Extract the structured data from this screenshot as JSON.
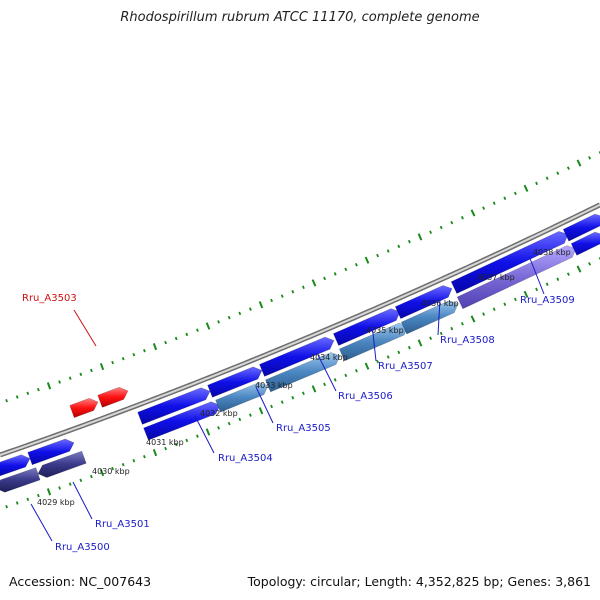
{
  "title": "Rhodospirillum rubrum ATCC 11170, complete genome",
  "footer": {
    "accession": "Accession: NC_007643",
    "summary": "Topology: circular; Length: 4,352,825 bp; Genes: 3,861"
  },
  "colors": {
    "backbone": "#888888",
    "tick": "#1a8a1a",
    "gene_dark_blue": "#1010e8",
    "gene_steel_blue": "#4a86c0",
    "gene_navy": "#3a3a8a",
    "gene_lavender": "#7a6ad8",
    "gene_red": "#ff1010",
    "label_blue": "#1a1ac8",
    "label_red": "#d01010"
  },
  "scale_labels": [
    "4029 kbp",
    "4030 kbp",
    "4031 kbp",
    "4032 kbp",
    "4033 kbp",
    "4034 kbp",
    "4035 kbp",
    "4036 kbp",
    "4037 kbp",
    "4038 kbp"
  ],
  "gene_labels": [
    {
      "name": "Rru_A3500",
      "color": "blue"
    },
    {
      "name": "Rru_A3501",
      "color": "blue"
    },
    {
      "name": "Rru_A3503",
      "color": "red"
    },
    {
      "name": "Rru_A3504",
      "color": "blue"
    },
    {
      "name": "Rru_A3505",
      "color": "blue"
    },
    {
      "name": "Rru_A3506",
      "color": "blue"
    },
    {
      "name": "Rru_A3507",
      "color": "blue"
    },
    {
      "name": "Rru_A3508",
      "color": "blue"
    },
    {
      "name": "Rru_A3509",
      "color": "blue"
    }
  ]
}
